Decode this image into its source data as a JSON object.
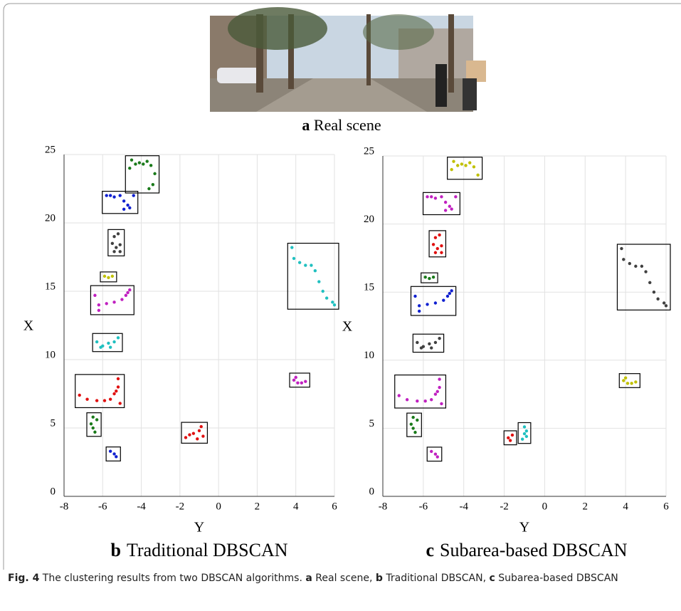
{
  "image": {
    "label": "a",
    "caption": "Real scene"
  },
  "chart_data": [
    {
      "type": "scatter",
      "label": "b",
      "caption": "Traditional DBSCAN",
      "xlabel": "Y",
      "ylabel": "X",
      "xlim": [
        -8,
        6
      ],
      "ylim": [
        0,
        25
      ],
      "xticks": [
        -8,
        -6,
        -4,
        -2,
        0,
        2,
        4,
        6
      ],
      "yticks": [
        0,
        5,
        10,
        15,
        20,
        25
      ],
      "grid": true,
      "series": [
        {
          "color": "#1a7a1a",
          "x": [
            -4.5,
            -4.3,
            -4.1,
            -3.9,
            -3.7,
            -3.5,
            -4.6,
            -3.3,
            -3.4,
            -3.6
          ],
          "values": [
            24.6,
            24.3,
            24.4,
            24.3,
            24.5,
            24.2,
            24.0,
            23.6,
            22.8,
            22.5
          ]
        },
        {
          "color": "#1020d0",
          "x": [
            -5.8,
            -5.6,
            -5.4,
            -5.1,
            -4.9,
            -4.7,
            -4.6,
            -4.9,
            -4.4
          ],
          "values": [
            22,
            22,
            21.9,
            22,
            21.6,
            21.3,
            21.1,
            21,
            22
          ]
        },
        {
          "color": "#404040",
          "x": [
            -5.4,
            -5.2,
            -5.5,
            -5.3,
            -5.1,
            -5.4,
            -5.1
          ],
          "values": [
            19,
            19.2,
            18.5,
            18.2,
            18.4,
            17.9,
            17.9
          ]
        },
        {
          "color": "#20c0c0",
          "x": [
            3.8,
            3.9,
            4.2,
            4.5,
            4.8,
            5.0,
            5.2,
            5.4,
            5.6,
            5.9,
            6.0
          ],
          "values": [
            18.2,
            17.4,
            17.1,
            16.9,
            16.9,
            16.5,
            15.7,
            15.0,
            14.5,
            14.2,
            14.0
          ]
        },
        {
          "color": "#c0c000",
          "x": [
            -5.9,
            -5.7,
            -5.5
          ],
          "values": [
            16.1,
            16.0,
            16.1
          ]
        },
        {
          "color": "#c020c0",
          "x": [
            -6.4,
            -6.2,
            -5.8,
            -5.4,
            -5.0,
            -4.8,
            -4.6,
            -6.2,
            -4.7
          ],
          "values": [
            14.7,
            14.0,
            14.1,
            14.2,
            14.4,
            14.7,
            15.1,
            13.6,
            14.9
          ]
        },
        {
          "color": "#20c0c0",
          "x": [
            -6.3,
            -6.0,
            -5.7,
            -5.4,
            -5.2,
            -5.6,
            -6.1
          ],
          "values": [
            11.3,
            11.0,
            11.2,
            11.3,
            11.6,
            10.9,
            10.9
          ]
        },
        {
          "color": "#c020c0",
          "x": [
            3.9,
            4.1,
            4.3,
            4.5,
            4.0
          ],
          "values": [
            8.5,
            8.3,
            8.3,
            8.4,
            8.7
          ]
        },
        {
          "color": "#e01010",
          "x": [
            -7.2,
            -6.8,
            -6.3,
            -5.9,
            -5.6,
            -5.4,
            -5.2,
            -5.2,
            -5.3,
            -5.1
          ],
          "values": [
            7.4,
            7.1,
            7.0,
            7.0,
            7.1,
            7.5,
            8.0,
            8.6,
            7.7,
            6.8
          ]
        },
        {
          "color": "#1a7a1a",
          "x": [
            -6.5,
            -6.5,
            -6.4,
            -6.6,
            -6.3
          ],
          "values": [
            5.8,
            5.0,
            4.7,
            5.3,
            5.6
          ]
        },
        {
          "color": "#e01010",
          "x": [
            -1.7,
            -1.5,
            -1.3,
            -1.0,
            -0.9,
            -0.8,
            -1.1
          ],
          "values": [
            4.3,
            4.5,
            4.6,
            4.8,
            5.1,
            4.4,
            4.2
          ]
        },
        {
          "color": "#1020d0",
          "x": [
            -5.6,
            -5.4,
            -5.3
          ],
          "values": [
            3.3,
            3.1,
            2.9
          ]
        }
      ]
    },
    {
      "type": "scatter",
      "label": "c",
      "caption": "Subarea-based DBSCAN",
      "xlabel": "Y",
      "ylabel": "X",
      "xlim": [
        -8,
        6
      ],
      "ylim": [
        0,
        25
      ],
      "xticks": [
        -8,
        -6,
        -4,
        -2,
        0,
        2,
        4,
        6
      ],
      "yticks": [
        0,
        5,
        10,
        15,
        20,
        25
      ],
      "grid": true,
      "series": [
        {
          "color": "#c0c000",
          "x": [
            -4.5,
            -4.3,
            -4.1,
            -3.9,
            -3.7,
            -3.5,
            -4.6,
            -3.3
          ],
          "values": [
            24.6,
            24.3,
            24.4,
            24.3,
            24.5,
            24.2,
            24.0,
            23.6
          ]
        },
        {
          "color": "#c020c0",
          "x": [
            -5.8,
            -5.6,
            -5.4,
            -5.1,
            -4.9,
            -4.7,
            -4.6,
            -4.9,
            -4.4
          ],
          "values": [
            22,
            22,
            21.9,
            22,
            21.6,
            21.3,
            21.1,
            21,
            22
          ]
        },
        {
          "color": "#e01010",
          "x": [
            -5.4,
            -5.2,
            -5.5,
            -5.3,
            -5.1,
            -5.4,
            -5.1
          ],
          "values": [
            19,
            19.2,
            18.5,
            18.2,
            18.4,
            17.9,
            17.9
          ]
        },
        {
          "color": "#404040",
          "x": [
            3.8,
            3.9,
            4.2,
            4.5,
            4.8,
            5.0,
            5.2,
            5.4,
            5.6,
            5.9,
            6.0
          ],
          "values": [
            18.2,
            17.4,
            17.1,
            16.9,
            16.9,
            16.5,
            15.7,
            15.0,
            14.5,
            14.2,
            14.0
          ]
        },
        {
          "color": "#1a7a1a",
          "x": [
            -5.9,
            -5.7,
            -5.5
          ],
          "values": [
            16.1,
            16.0,
            16.1
          ]
        },
        {
          "color": "#1020d0",
          "x": [
            -6.4,
            -6.2,
            -5.8,
            -5.4,
            -5.0,
            -4.8,
            -4.6,
            -6.2,
            -4.7
          ],
          "values": [
            14.7,
            14.0,
            14.1,
            14.2,
            14.4,
            14.7,
            15.1,
            13.6,
            14.9
          ]
        },
        {
          "color": "#404040",
          "x": [
            -6.3,
            -6.0,
            -5.7,
            -5.4,
            -5.2,
            -5.6,
            -6.1
          ],
          "values": [
            11.3,
            11.0,
            11.2,
            11.3,
            11.6,
            10.9,
            10.9
          ]
        },
        {
          "color": "#c0c000",
          "x": [
            3.9,
            4.1,
            4.3,
            4.5,
            4.0
          ],
          "values": [
            8.5,
            8.3,
            8.3,
            8.4,
            8.7
          ]
        },
        {
          "color": "#c020c0",
          "x": [
            -7.2,
            -6.8,
            -6.3,
            -5.9,
            -5.6,
            -5.4,
            -5.2,
            -5.2,
            -5.3,
            -5.1
          ],
          "values": [
            7.4,
            7.1,
            7.0,
            7.0,
            7.1,
            7.5,
            8.0,
            8.6,
            7.7,
            6.8
          ]
        },
        {
          "color": "#1a7a1a",
          "x": [
            -6.5,
            -6.5,
            -6.4,
            -6.6,
            -6.3
          ],
          "values": [
            5.8,
            5.0,
            4.7,
            5.3,
            5.6
          ]
        },
        {
          "color": "#e01010",
          "x": [
            -1.8,
            -1.6,
            -1.7
          ],
          "values": [
            4.3,
            4.5,
            4.1
          ]
        },
        {
          "color": "#20c0c0",
          "x": [
            -1.1,
            -1.0,
            -0.9,
            -1.0,
            -0.9
          ],
          "values": [
            4.2,
            4.6,
            4.8,
            5.1,
            4.4
          ]
        },
        {
          "color": "#c020c0",
          "x": [
            -5.6,
            -5.4,
            -5.3
          ],
          "values": [
            3.3,
            3.1,
            2.9
          ]
        }
      ]
    }
  ],
  "figure_caption": [
    "Fig. 4",
    " The clustering results from two DBSCAN algorithms. ",
    "a",
    " Real scene, ",
    "b",
    " Traditional DBSCAN, ",
    "c",
    " Subarea-based DBSCAN"
  ]
}
